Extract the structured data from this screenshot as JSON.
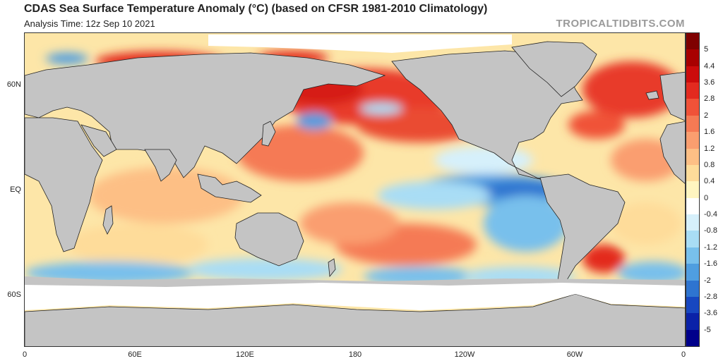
{
  "header": {
    "title": "CDAS Sea Surface Temperature Anomaly (°C) (based on CFSR 1981-2010 Climatology)",
    "analysis_time": "Analysis Time: 12z Sep 10 2021",
    "brand": "TROPICALTIDBITS.COM"
  },
  "map": {
    "projection": "cylindrical equidistant",
    "center": "Pacific",
    "lon_range": [
      0,
      360
    ],
    "lat_labels": [
      {
        "label": "60N",
        "lat": 60
      },
      {
        "label": "EQ",
        "lat": 0
      },
      {
        "label": "60S",
        "lat": -60
      }
    ],
    "lon_labels": [
      {
        "label": "0",
        "lon": 0
      },
      {
        "label": "60E",
        "lon": 60
      },
      {
        "label": "120E",
        "lon": 120
      },
      {
        "label": "180",
        "lon": 180
      },
      {
        "label": "120W",
        "lon": 240
      },
      {
        "label": "60W",
        "lon": 300
      },
      {
        "label": "0",
        "lon": 360
      }
    ],
    "land_color": "#c4c4c4",
    "ice_color": "#ffffff"
  },
  "colorbar": {
    "labels": [
      "5",
      "4.4",
      "3.6",
      "2.8",
      "2",
      "1.6",
      "1.2",
      "0.8",
      "0.4",
      "0",
      "-0.4",
      "-0.8",
      "-1.2",
      "-1.6",
      "-2",
      "-2.8",
      "-3.6",
      "-5"
    ],
    "colors": [
      "#7f0000",
      "#a80000",
      "#cc0b0b",
      "#e32a1f",
      "#f05238",
      "#f57a54",
      "#fa9e6f",
      "#fdbf85",
      "#fedc9a",
      "#fff5c0",
      "#ffffff",
      "#d6f0fb",
      "#a9ddf5",
      "#78c0ec",
      "#4f9ee0",
      "#2e74d0",
      "#1747c0",
      "#0a22a8",
      "#00008b"
    ]
  }
}
